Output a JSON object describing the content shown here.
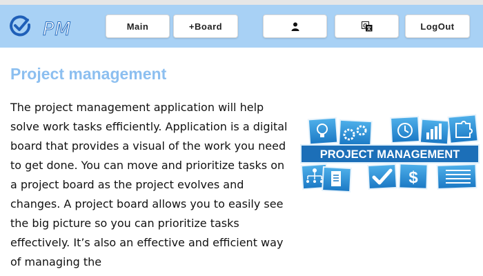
{
  "header": {
    "logo_text": "PM",
    "buttons": {
      "main": "Main",
      "board": "+Board",
      "logout": "LogOut"
    },
    "icons": {
      "logo": "check-circle-icon",
      "user": "user-icon",
      "language": "translate-icon"
    },
    "colors": {
      "header_bg": "#a8d1f5",
      "accent": "#2a6fc0"
    }
  },
  "main": {
    "title": "Project management",
    "description": "The project management application will help solve work tasks efficiently. Application is a digital board that provides a visual of the work you need to get done. You can move and prioritize tasks on a project board as the project evolves and changes. A project board allows you to easily see the big picture so you can prioritize tasks effectively. It’s also an effective and efficient way of managing the",
    "illustration": {
      "banner_text": "PROJECT MANAGEMENT",
      "icons": [
        "lightbulb-icon",
        "gears-icon",
        "clock-icon",
        "bar-chart-icon",
        "puzzle-icon",
        "org-chart-icon",
        "document-icon",
        "checkmark-icon",
        "dollar-icon",
        "list-icon"
      ]
    }
  }
}
